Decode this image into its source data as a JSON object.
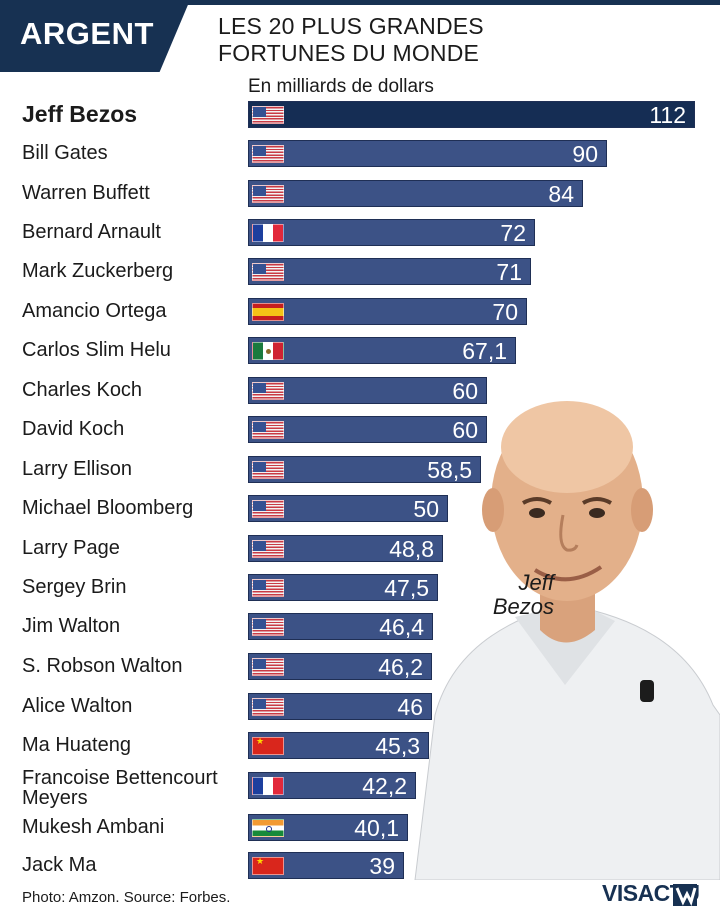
{
  "banner": "ARGENT",
  "title_lines": [
    "LES 20 PLUS GRANDES",
    "FORTUNES DU MONDE"
  ],
  "unit": "En milliards de dollars",
  "photo_caption_lines": [
    "Jeff",
    "Bezos"
  ],
  "footer_credit": "Photo: Amzon.  Source: Forbes.",
  "brand": "VISACTU",
  "colors": {
    "banner": "#173152",
    "lead_bar": "#152d54",
    "bar": "#3c5286",
    "text": "#1b1b1b"
  },
  "chart_data": {
    "type": "bar",
    "orientation": "horizontal",
    "title": "LES 20 PLUS GRANDES FORTUNES DU MONDE",
    "unit": "En milliards de dollars",
    "categories": [
      "Jeff Bezos",
      "Bill Gates",
      "Warren Buffett",
      "Bernard Arnault",
      "Mark Zuckerberg",
      "Amancio Ortega",
      "Carlos Slim Helu",
      "Charles Koch",
      "David Koch",
      "Larry Ellison",
      "Michael Bloomberg",
      "Larry Page",
      "Sergey Brin",
      "Jim Walton",
      "S. Robson Walton",
      "Alice Walton",
      "Ma Huateng",
      "Francoise Bettencourt Meyers",
      "Mukesh Ambani",
      "Jack Ma"
    ],
    "values": [
      112,
      90,
      84,
      72,
      71,
      70,
      67.1,
      60,
      60,
      58.5,
      50,
      48.8,
      47.5,
      46.4,
      46.2,
      46,
      45.3,
      42.2,
      40.1,
      39
    ],
    "value_labels": [
      "112",
      "90",
      "84",
      "72",
      "71",
      "70",
      "67,1",
      "60",
      "60",
      "58,5",
      "50",
      "48,8",
      "47,5",
      "46,4",
      "46,2",
      "46",
      "45,3",
      "42,2",
      "40,1",
      "39"
    ],
    "flags": [
      "us",
      "us",
      "us",
      "fr",
      "us",
      "es",
      "mx",
      "us",
      "us",
      "us",
      "us",
      "us",
      "us",
      "us",
      "us",
      "us",
      "cn",
      "fr",
      "in",
      "cn"
    ],
    "xlim": [
      0,
      112
    ],
    "grid": false,
    "legend": "none"
  }
}
